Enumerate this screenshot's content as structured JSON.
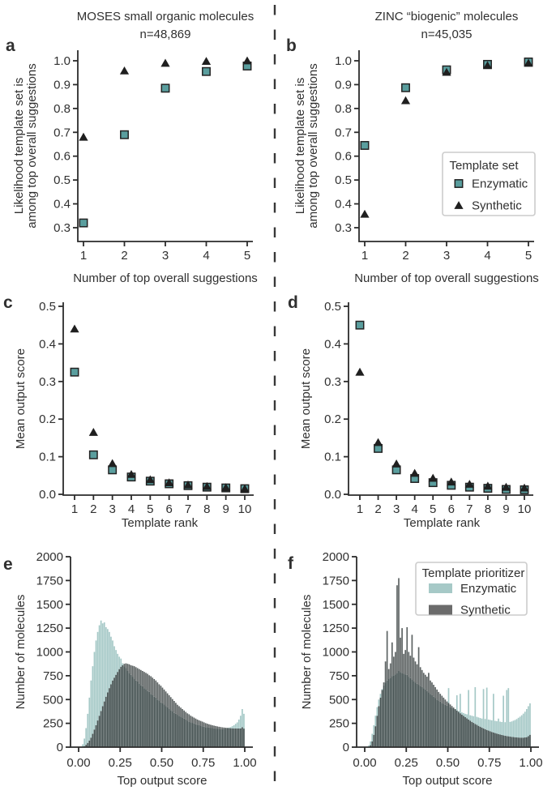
{
  "figure_caption": "",
  "colors": {
    "enzymatic_marker": "#5a9e9e",
    "marker_edge": "#222222",
    "synthetic_marker": "#1f1f1f",
    "hist_enzymatic": "#a6c9c7",
    "hist_synthetic": "#5e6464",
    "hist_overlap": "#414e4e",
    "legend_synthetic_swatch": "#6b6b6b",
    "spine": "#2b2b2b",
    "text": "#303030",
    "legend_border": "#cccccc",
    "divider": "#383838"
  },
  "chart_data": [
    {
      "id": "a",
      "panel_label": "a",
      "type": "scatter",
      "title": "MOSES small organic molecules",
      "subtitle": "n=48,869",
      "xlabel": "Number of top overall suggestions",
      "ylabel_lines": [
        "Likelihood template set is",
        "among top overall suggestions"
      ],
      "x": [
        1,
        2,
        3,
        4,
        5
      ],
      "series": [
        {
          "name": "Enzymatic",
          "marker": "square",
          "values": [
            0.32,
            0.69,
            0.885,
            0.955,
            0.978
          ]
        },
        {
          "name": "Synthetic",
          "marker": "triangle",
          "values": [
            0.68,
            0.958,
            0.99,
            0.998,
            1.0
          ]
        }
      ],
      "xtick_labels": [
        "1",
        "2",
        "3",
        "4",
        "5"
      ],
      "ytick_labels": [
        "0.3",
        "0.4",
        "0.5",
        "0.6",
        "0.7",
        "0.8",
        "0.9",
        "1.0"
      ],
      "ylim": [
        0.3,
        1.0
      ]
    },
    {
      "id": "b",
      "panel_label": "b",
      "type": "scatter",
      "title": "ZINC “biogenic” molecules",
      "subtitle": "n=45,035",
      "xlabel": "Number of top overall suggestions",
      "ylabel_lines": [
        "Likelihood template set is",
        "among top overall suggestions"
      ],
      "x": [
        1,
        2,
        3,
        4,
        5
      ],
      "series": [
        {
          "name": "Enzymatic",
          "marker": "square",
          "values": [
            0.645,
            0.887,
            0.962,
            0.985,
            0.995
          ]
        },
        {
          "name": "Synthetic",
          "marker": "triangle",
          "values": [
            0.357,
            0.833,
            0.952,
            0.98,
            0.99
          ]
        }
      ],
      "xtick_labels": [
        "1",
        "2",
        "3",
        "4",
        "5"
      ],
      "ytick_labels": [
        "0.3",
        "0.4",
        "0.5",
        "0.6",
        "0.7",
        "0.8",
        "0.9",
        "1.0"
      ],
      "ylim": [
        0.3,
        1.0
      ],
      "legend": {
        "title": "Template set",
        "items": [
          {
            "label": "Enzymatic",
            "marker": "square"
          },
          {
            "label": "Synthetic",
            "marker": "triangle"
          }
        ]
      }
    },
    {
      "id": "c",
      "panel_label": "c",
      "type": "scatter",
      "title": null,
      "xlabel": "Template rank",
      "ylabel_lines": [
        "Mean output score"
      ],
      "x": [
        1,
        2,
        3,
        4,
        5,
        6,
        7,
        8,
        9,
        10
      ],
      "series": [
        {
          "name": "Enzymatic",
          "marker": "square",
          "values": [
            0.325,
            0.105,
            0.065,
            0.046,
            0.035,
            0.028,
            0.023,
            0.019,
            0.017,
            0.015
          ]
        },
        {
          "name": "Synthetic",
          "marker": "triangle",
          "values": [
            0.44,
            0.165,
            0.082,
            0.053,
            0.039,
            0.031,
            0.025,
            0.021,
            0.018,
            0.015
          ]
        }
      ],
      "xtick_labels": [
        "1",
        "2",
        "3",
        "4",
        "5",
        "6",
        "7",
        "8",
        "9",
        "10"
      ],
      "ytick_labels": [
        "0.0",
        "0.1",
        "0.2",
        "0.3",
        "0.4",
        "0.5"
      ],
      "ylim": [
        0.0,
        0.5
      ]
    },
    {
      "id": "d",
      "panel_label": "d",
      "type": "scatter",
      "title": null,
      "xlabel": "Template rank",
      "ylabel_lines": [
        "Mean output score"
      ],
      "x": [
        1,
        2,
        3,
        4,
        5,
        6,
        7,
        8,
        9,
        10
      ],
      "series": [
        {
          "name": "Enzymatic",
          "marker": "square",
          "values": [
            0.45,
            0.122,
            0.065,
            0.042,
            0.031,
            0.024,
            0.019,
            0.016,
            0.013,
            0.012
          ]
        },
        {
          "name": "Synthetic",
          "marker": "triangle",
          "values": [
            0.325,
            0.138,
            0.081,
            0.056,
            0.043,
            0.033,
            0.027,
            0.022,
            0.019,
            0.017
          ]
        }
      ],
      "xtick_labels": [
        "1",
        "2",
        "3",
        "4",
        "5",
        "6",
        "7",
        "8",
        "9",
        "10"
      ],
      "ytick_labels": [
        "0.0",
        "0.1",
        "0.2",
        "0.3",
        "0.4",
        "0.5"
      ],
      "ylim": [
        0.0,
        0.5
      ]
    },
    {
      "id": "e",
      "panel_label": "e",
      "type": "histogram",
      "title": null,
      "xlabel": "Top output score",
      "ylabel_lines": [
        "Number of molecules"
      ],
      "bin_start": 0,
      "bin_width": 0.01,
      "series": [
        {
          "name": "Enzymatic",
          "values": [
            0,
            0,
            30,
            90,
            200,
            350,
            520,
            700,
            850,
            1000,
            1120,
            1210,
            1280,
            1330,
            1300,
            1310,
            1260,
            1240,
            1210,
            1160,
            1120,
            1060,
            1020,
            980,
            950,
            930,
            880,
            850,
            830,
            800,
            780,
            760,
            740,
            720,
            700,
            690,
            670,
            650,
            640,
            620,
            610,
            590,
            580,
            560,
            550,
            530,
            520,
            500,
            490,
            470,
            460,
            450,
            430,
            420,
            400,
            390,
            380,
            360,
            350,
            340,
            330,
            320,
            310,
            300,
            290,
            280,
            270,
            260,
            255,
            250,
            240,
            235,
            230,
            225,
            220,
            215,
            210,
            208,
            205,
            200,
            200,
            198,
            195,
            195,
            192,
            190,
            190,
            192,
            195,
            200,
            205,
            210,
            220,
            230,
            245,
            260,
            290,
            330,
            400,
            350
          ]
        },
        {
          "name": "Synthetic",
          "values": [
            0,
            0,
            0,
            10,
            25,
            45,
            70,
            100,
            140,
            185,
            230,
            280,
            330,
            380,
            430,
            480,
            530,
            575,
            620,
            660,
            700,
            730,
            760,
            790,
            820,
            845,
            860,
            875,
            880,
            875,
            870,
            860,
            855,
            850,
            840,
            830,
            820,
            810,
            800,
            790,
            780,
            770,
            755,
            745,
            730,
            715,
            700,
            680,
            660,
            645,
            625,
            605,
            585,
            565,
            545,
            525,
            505,
            485,
            465,
            445,
            430,
            415,
            400,
            385,
            370,
            355,
            345,
            330,
            320,
            310,
            300,
            290,
            282,
            275,
            268,
            260,
            252,
            246,
            240,
            235,
            230,
            226,
            222,
            218,
            214,
            211,
            208,
            206,
            204,
            202,
            200,
            199,
            198,
            197,
            197,
            196,
            196,
            197,
            210,
            195
          ]
        }
      ],
      "xtick_labels": [
        "0.00",
        "0.25",
        "0.50",
        "0.75",
        "1.00"
      ],
      "ytick_labels": [
        "0",
        "250",
        "500",
        "750",
        "1000",
        "1250",
        "1500",
        "1750",
        "2000"
      ],
      "ylim": [
        0,
        2000
      ]
    },
    {
      "id": "f",
      "panel_label": "f",
      "type": "histogram",
      "title": null,
      "xlabel": "Top output score",
      "ylabel_lines": [
        "Number of molecules"
      ],
      "bin_start": 0,
      "bin_width": 0.01,
      "series": [
        {
          "name": "Enzymatic",
          "values": [
            0,
            0,
            20,
            60,
            140,
            230,
            330,
            420,
            500,
            560,
            610,
            650,
            680,
            700,
            720,
            730,
            745,
            755,
            765,
            780,
            800,
            790,
            780,
            770,
            765,
            760,
            740,
            725,
            710,
            695,
            680,
            665,
            655,
            645,
            630,
            620,
            605,
            590,
            575,
            560,
            545,
            530,
            515,
            500,
            490,
            478,
            466,
            455,
            445,
            436,
            620,
            420,
            412,
            404,
            396,
            545,
            380,
            560,
            365,
            358,
            350,
            345,
            600,
            335,
            330,
            325,
            630,
            318,
            312,
            306,
            300,
            610,
            296,
            625,
            290,
            286,
            282,
            560,
            276,
            272,
            300,
            268,
            264,
            540,
            262,
            600,
            620,
            265,
            270,
            278,
            285,
            295,
            308,
            320,
            335,
            352,
            372,
            400,
            430,
            460
          ]
        },
        {
          "name": "Synthetic",
          "values": [
            0,
            0,
            5,
            20,
            60,
            130,
            220,
            330,
            430,
            520,
            600,
            680,
            900,
            1220,
            820,
            880,
            1100,
            950,
            1000,
            1700,
            1775,
            1150,
            1250,
            980,
            1020,
            1260,
            1000,
            960,
            1180,
            940,
            900,
            870,
            1050,
            840,
            810,
            780,
            760,
            740,
            780,
            700,
            680,
            655,
            630,
            605,
            580,
            560,
            540,
            520,
            500,
            480,
            465,
            448,
            432,
            416,
            400,
            385,
            370,
            356,
            342,
            328,
            315,
            302,
            290,
            278,
            266,
            255,
            244,
            234,
            224,
            215,
            206,
            197,
            189,
            181,
            174,
            167,
            160,
            154,
            148,
            143,
            138,
            133,
            128,
            124,
            120,
            117,
            114,
            111,
            108,
            106,
            104,
            102,
            101,
            100,
            100,
            100,
            102,
            105,
            115,
            130
          ]
        }
      ],
      "xtick_labels": [
        "0.00",
        "0.25",
        "0.50",
        "0.75",
        "1.00"
      ],
      "ytick_labels": [
        "0",
        "250",
        "500",
        "750",
        "1000",
        "1250",
        "1500",
        "1750",
        "2000"
      ],
      "ylim": [
        0,
        2000
      ],
      "legend": {
        "title": "Template prioritizer",
        "items": [
          {
            "label": "Enzymatic",
            "swatch": "teal"
          },
          {
            "label": "Synthetic",
            "swatch": "gray"
          }
        ]
      }
    }
  ]
}
